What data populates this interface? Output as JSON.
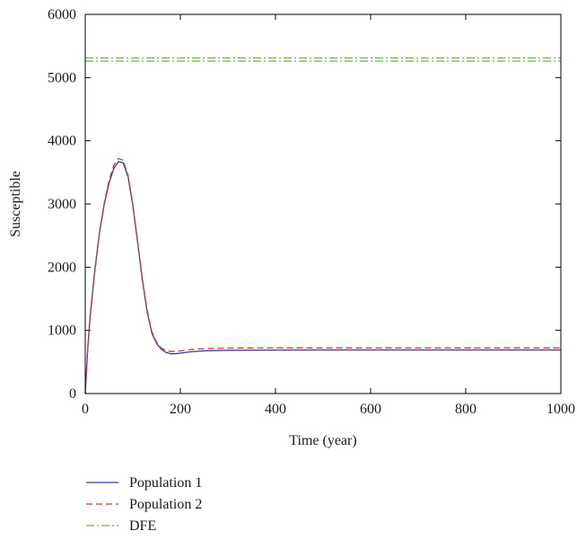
{
  "chart_data": {
    "type": "line",
    "xlabel": "Time (year)",
    "ylabel": "Susceptible",
    "xlim": [
      0,
      1000
    ],
    "ylim": [
      0,
      6000
    ],
    "xticks": [
      0,
      200,
      400,
      600,
      800,
      1000
    ],
    "yticks": [
      0,
      1000,
      2000,
      3000,
      4000,
      5000,
      6000
    ],
    "grid": false,
    "legend_position": "bottom-left, below the plot",
    "series": [
      {
        "name": "Population 1",
        "color": "#2b3f99",
        "dash": "solid",
        "x": [
          0,
          5,
          10,
          20,
          30,
          40,
          50,
          60,
          70,
          80,
          90,
          100,
          110,
          120,
          130,
          140,
          150,
          160,
          170,
          180,
          190,
          200,
          220,
          250,
          300,
          400,
          500,
          600,
          700,
          800,
          900,
          1000
        ],
        "y": [
          0,
          700,
          1200,
          1950,
          2550,
          3000,
          3330,
          3560,
          3670,
          3650,
          3430,
          2980,
          2400,
          1800,
          1300,
          960,
          790,
          700,
          650,
          630,
          630,
          640,
          660,
          675,
          685,
          688,
          690,
          690,
          690,
          690,
          690,
          690
        ]
      },
      {
        "name": "Population 2",
        "color": "#e0303a",
        "dash": "dashed",
        "x": [
          0,
          5,
          10,
          20,
          30,
          40,
          50,
          60,
          70,
          80,
          90,
          100,
          110,
          120,
          130,
          140,
          150,
          160,
          170,
          180,
          190,
          200,
          220,
          250,
          300,
          400,
          500,
          600,
          700,
          800,
          900,
          1000
        ],
        "y": [
          0,
          690,
          1180,
          1920,
          2550,
          3020,
          3370,
          3610,
          3720,
          3690,
          3450,
          2990,
          2410,
          1820,
          1320,
          980,
          810,
          720,
          680,
          665,
          665,
          675,
          695,
          710,
          720,
          722,
          722,
          722,
          722,
          722,
          722,
          722
        ]
      },
      {
        "name": "DFE",
        "color": "#6db84a",
        "dash": "dashdot",
        "x": [
          0,
          1000
        ],
        "y": [
          5260,
          5260
        ]
      },
      {
        "name": "DFE",
        "color": "#6db84a",
        "dash": "dashdot",
        "legend": false,
        "x": [
          0,
          1000
        ],
        "y": [
          5310,
          5310
        ]
      }
    ]
  }
}
